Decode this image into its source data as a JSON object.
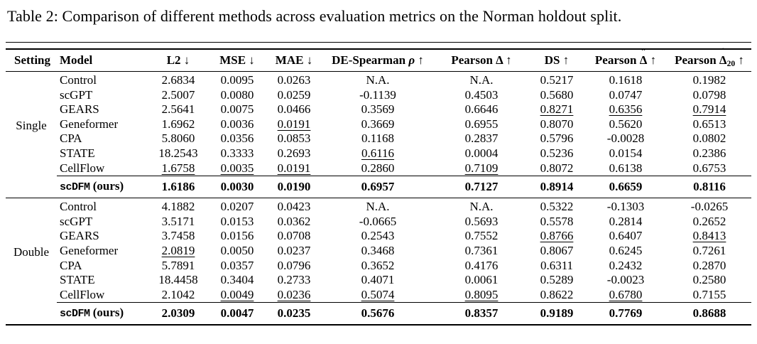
{
  "title": "Table 2: Comparison of different methods across evaluation metrics on the Norman holdout split.",
  "table": {
    "columns": [
      {
        "label": "Setting",
        "kind": "setting"
      },
      {
        "label": "Model",
        "kind": "model"
      },
      {
        "label": "L2",
        "arrow": "↓"
      },
      {
        "label": "MSE",
        "arrow": "↓"
      },
      {
        "label": "MAE",
        "arrow": "↓"
      },
      {
        "label": "DE-Spearman",
        "sym": "ρ",
        "italic": true,
        "arrow": "↑"
      },
      {
        "label": "Pearson",
        "sym": "Δ",
        "arrow": "↑"
      },
      {
        "label": "DS",
        "arrow": "↑"
      },
      {
        "label": "Pearson",
        "sym": "Δ",
        "hat": true,
        "arrow": "↑"
      },
      {
        "label": "Pearson",
        "sym": "Δ",
        "hat": true,
        "sub": "20",
        "arrow": "↑"
      }
    ],
    "sections": [
      {
        "setting": "Single",
        "rows": [
          {
            "model": "Control",
            "values": [
              "2.6834",
              "0.0095",
              "0.0263",
              "N.A.",
              "N.A.",
              "0.5217",
              "0.1618",
              "0.1982"
            ]
          },
          {
            "model": "scGPT",
            "values": [
              "2.5007",
              "0.0080",
              "0.0259",
              "-0.1139",
              "0.4503",
              "0.5680",
              "0.0747",
              "0.0798"
            ]
          },
          {
            "model": "GEARS",
            "values": [
              "2.5641",
              "0.0075",
              "0.0466",
              "0.3569",
              "0.6646",
              {
                "v": "0.8271",
                "u": true
              },
              {
                "v": "0.6356",
                "u": true
              },
              {
                "v": "0.7914",
                "u": true
              }
            ]
          },
          {
            "model": "Geneformer",
            "values": [
              "1.6962",
              "0.0036",
              {
                "v": "0.0191",
                "u": true
              },
              "0.3669",
              "0.6955",
              "0.8070",
              "0.5620",
              "0.6513"
            ]
          },
          {
            "model": "CPA",
            "values": [
              "5.8060",
              "0.0356",
              "0.0853",
              "0.1168",
              "0.2837",
              "0.5796",
              "-0.0028",
              "0.0802"
            ]
          },
          {
            "model": "STATE",
            "values": [
              "18.2543",
              "0.3333",
              "0.2693",
              {
                "v": "0.6116",
                "u": true
              },
              "0.0004",
              "0.5236",
              "0.0154",
              "0.2386"
            ]
          },
          {
            "model": "CellFlow",
            "values": [
              {
                "v": "1.6758",
                "u": true
              },
              {
                "v": "0.0035",
                "u": true
              },
              {
                "v": "0.0191",
                "u": true
              },
              "0.2860",
              {
                "v": "0.7109",
                "u": true
              },
              "0.8072",
              "0.6138",
              "0.6753"
            ]
          }
        ],
        "ours": {
          "model_mono": "scDFM",
          "model_suffix": " (ours)",
          "values": [
            "1.6186",
            "0.0030",
            "0.0190",
            "0.6957",
            "0.7127",
            "0.8914",
            "0.6659",
            "0.8116"
          ]
        }
      },
      {
        "setting": "Double",
        "rows": [
          {
            "model": "Control",
            "values": [
              "4.1882",
              "0.0207",
              "0.0423",
              "N.A.",
              "N.A.",
              "0.5322",
              "-0.1303",
              "-0.0265"
            ]
          },
          {
            "model": "scGPT",
            "values": [
              "3.5171",
              "0.0153",
              "0.0362",
              "-0.0665",
              "0.5693",
              "0.5578",
              "0.2814",
              "0.2652"
            ]
          },
          {
            "model": "GEARS",
            "values": [
              "3.7458",
              "0.0156",
              "0.0708",
              "0.2543",
              "0.7552",
              {
                "v": "0.8766",
                "u": true
              },
              "0.6407",
              {
                "v": "0.8413",
                "u": true
              }
            ]
          },
          {
            "model": "Geneformer",
            "values": [
              {
                "v": "2.0819",
                "u": true
              },
              "0.0050",
              "0.0237",
              "0.3468",
              "0.7361",
              "0.8067",
              "0.6245",
              "0.7261"
            ]
          },
          {
            "model": "CPA",
            "values": [
              "5.7891",
              "0.0357",
              "0.0796",
              "0.3652",
              "0.4176",
              "0.6311",
              "0.2432",
              "0.2870"
            ]
          },
          {
            "model": "STATE",
            "values": [
              "18.4458",
              "0.3404",
              "0.2733",
              "0.4071",
              "0.0061",
              "0.5289",
              "-0.0023",
              "0.2580"
            ]
          },
          {
            "model": "CellFlow",
            "values": [
              "2.1042",
              {
                "v": "0.0049",
                "u": true
              },
              {
                "v": "0.0236",
                "u": true
              },
              {
                "v": "0.5074",
                "u": true
              },
              {
                "v": "0.8095",
                "u": true
              },
              "0.8622",
              {
                "v": "0.6780",
                "u": true
              },
              "0.7155"
            ]
          }
        ],
        "ours": {
          "model_mono": "scDFM",
          "model_suffix": " (ours)",
          "values": [
            "2.0309",
            "0.0047",
            "0.0235",
            "0.5676",
            "0.8357",
            "0.9189",
            "0.7769",
            "0.8688"
          ]
        }
      }
    ]
  }
}
